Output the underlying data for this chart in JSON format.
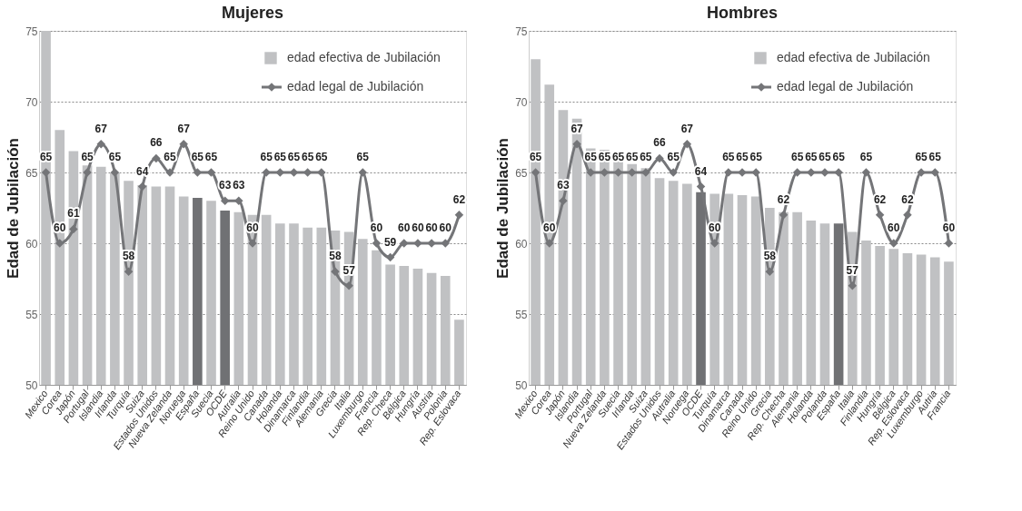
{
  "chart_data": [
    {
      "type": "bar",
      "title": "Mujeres",
      "ylabel": "Edad de Jubilación",
      "categories": [
        "Mexico",
        "Corea",
        "Japón",
        "Portugal",
        "Islandia",
        "Irlanda",
        "Turquía",
        "Suiza",
        "Estados Unidos",
        "Nueva Zelanda",
        "Noruega",
        "España",
        "Suecia",
        "OCDE",
        "Autralia",
        "Reino Unido",
        "Canada",
        "Holanda",
        "Dinamarca",
        "Finlandia",
        "Alemania",
        "Grecia",
        "Italia",
        "Luxemburgo",
        "Francia",
        "Rep. Checa",
        "Bélgica",
        "Hungría",
        "Austria",
        "Polonia",
        "Rep. Eslovaca"
      ],
      "series": [
        {
          "name": "edad efectiva de Jubilación",
          "type": "bar",
          "color": "#c0c1c3",
          "colors": [
            "#c0c1c3",
            "#c0c1c3",
            "#c0c1c3",
            "#c0c1c3",
            "#c0c1c3",
            "#c0c1c3",
            "#c0c1c3",
            "#c0c1c3",
            "#c0c1c3",
            "#c0c1c3",
            "#c0c1c3",
            "#707174",
            "#c0c1c3",
            "#707174",
            "#c0c1c3",
            "#c0c1c3",
            "#c0c1c3",
            "#c0c1c3",
            "#c0c1c3",
            "#c0c1c3",
            "#c0c1c3",
            "#c0c1c3",
            "#c0c1c3",
            "#c0c1c3",
            "#c0c1c3",
            "#c0c1c3",
            "#c0c1c3",
            "#c0c1c3",
            "#c0c1c3",
            "#c0c1c3",
            "#c0c1c3"
          ],
          "values": [
            75.0,
            68.0,
            66.5,
            65.5,
            65.4,
            65.0,
            64.4,
            64.1,
            64.0,
            64.0,
            63.3,
            63.2,
            63.0,
            62.3,
            62.2,
            62.0,
            62.0,
            61.4,
            61.4,
            61.1,
            61.1,
            60.9,
            60.8,
            60.3,
            59.5,
            58.5,
            58.4,
            58.2,
            57.9,
            57.7,
            54.6
          ]
        },
        {
          "name": "edad legal de Jubilación",
          "type": "line",
          "color": "#747578",
          "marker": "diamond",
          "values": [
            65,
            60,
            61,
            65,
            67,
            65,
            58,
            64,
            66,
            65,
            67,
            65,
            65,
            63,
            63,
            60,
            65,
            65,
            65,
            65,
            65,
            58,
            57,
            65,
            60,
            59,
            60,
            60,
            60,
            60,
            62
          ],
          "value_labels": [
            "65",
            "60",
            "61",
            "65",
            "67",
            "65",
            "58",
            "64",
            "66",
            "65",
            "67",
            "65",
            "65",
            "63",
            "63",
            "60",
            "65",
            "65",
            "65",
            "65",
            "65",
            "58",
            "57",
            "65",
            "60",
            "59",
            "60",
            "60",
            "60",
            "60",
            "62"
          ]
        }
      ],
      "ylim": [
        50,
        75
      ],
      "yticks": [
        50,
        55,
        60,
        65,
        70,
        75
      ],
      "grid": "y",
      "legend": "top right"
    },
    {
      "type": "bar",
      "title": "Hombres",
      "ylabel": "Edad de Jubilación",
      "categories": [
        "Mexico",
        "Corea",
        "Japón",
        "Islandia",
        "Portugal",
        "Nueva Zelanda",
        "Suecia",
        "Irlanda",
        "Suiza",
        "Estados Unidos",
        "Autralia",
        "Noruega",
        "OCDE",
        "Turquía",
        "Dinamarca",
        "Canada",
        "Reino Unido",
        "Grecia",
        "Rep. Checha",
        "Alemania",
        "Holanda",
        "Polanda",
        "España",
        "Italia",
        "Finlandia",
        "Hungría",
        "Bélgica",
        "Rep. Eslovaca",
        "Luxemburgo",
        "Autria",
        "Francia"
      ],
      "series": [
        {
          "name": "edad efectiva de Jubilación",
          "type": "bar",
          "color": "#c0c1c3",
          "colors": [
            "#c0c1c3",
            "#c0c1c3",
            "#c0c1c3",
            "#c0c1c3",
            "#c0c1c3",
            "#c0c1c3",
            "#c0c1c3",
            "#c0c1c3",
            "#c0c1c3",
            "#c0c1c3",
            "#c0c1c3",
            "#c0c1c3",
            "#707174",
            "#c0c1c3",
            "#c0c1c3",
            "#c0c1c3",
            "#c0c1c3",
            "#c0c1c3",
            "#c0c1c3",
            "#c0c1c3",
            "#c0c1c3",
            "#c0c1c3",
            "#707174",
            "#c0c1c3",
            "#c0c1c3",
            "#c0c1c3",
            "#c0c1c3",
            "#c0c1c3",
            "#c0c1c3",
            "#c0c1c3",
            "#c0c1c3"
          ],
          "values": [
            73.0,
            71.2,
            69.4,
            68.8,
            66.7,
            66.6,
            65.8,
            65.6,
            65.3,
            64.6,
            64.4,
            64.2,
            63.6,
            63.5,
            63.5,
            63.4,
            63.3,
            62.5,
            62.2,
            62.2,
            61.6,
            61.4,
            61.4,
            60.8,
            60.2,
            59.8,
            59.6,
            59.3,
            59.2,
            59.0,
            58.7
          ]
        },
        {
          "name": "edad legal de Jubilación",
          "type": "line",
          "color": "#747578",
          "marker": "diamond",
          "values": [
            65,
            60,
            63,
            67,
            65,
            65,
            65,
            65,
            65,
            66,
            65,
            67,
            64,
            60,
            65,
            65,
            65,
            58,
            62,
            65,
            65,
            65,
            65,
            57,
            65,
            62,
            60,
            62,
            65,
            65,
            60
          ],
          "value_labels": [
            "65",
            "60",
            "63",
            "67",
            "65",
            "65",
            "65",
            "65",
            "65",
            "66",
            "65",
            "67",
            "64",
            "60",
            "65",
            "65",
            "65",
            "58",
            "62",
            "65",
            "65",
            "65",
            "65",
            "57",
            "65",
            "62",
            "60",
            "62",
            "65",
            "65",
            "60"
          ]
        }
      ],
      "ylim": [
        50,
        75
      ],
      "yticks": [
        50,
        55,
        60,
        65,
        70,
        75
      ],
      "grid": "y",
      "legend": "top right"
    }
  ]
}
